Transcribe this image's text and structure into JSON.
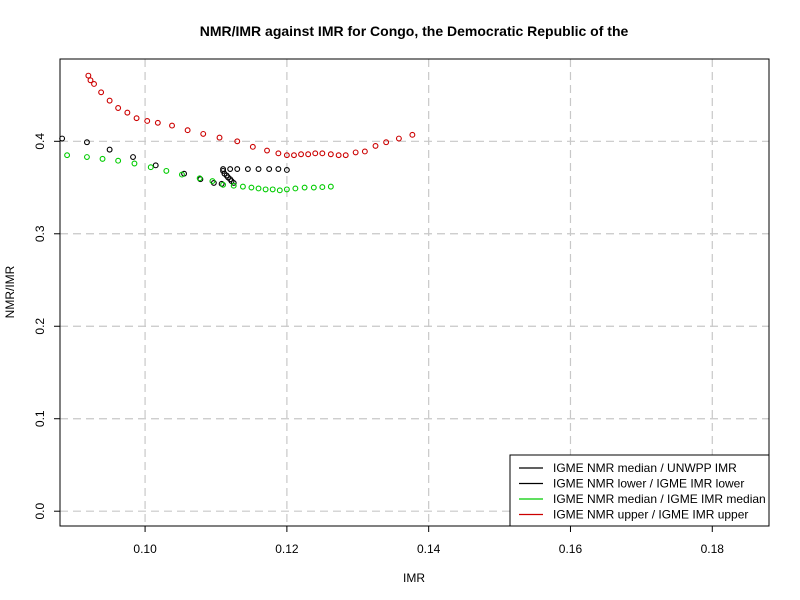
{
  "chart_data": {
    "type": "scatter",
    "title": "NMR/IMR against IMR for Congo, the Democratic Republic of the",
    "xlabel": "IMR",
    "ylabel": "NMR/IMR",
    "xlim": [
      0.088,
      0.188
    ],
    "ylim": [
      -0.016,
      0.489
    ],
    "xticks": [
      0.1,
      0.12,
      0.14,
      0.16,
      0.18
    ],
    "xtick_labels": [
      "0.10",
      "0.12",
      "0.14",
      "0.16",
      "0.18"
    ],
    "yticks": [
      0.0,
      0.1,
      0.2,
      0.3,
      0.4
    ],
    "ytick_labels": [
      "0.0",
      "0.1",
      "0.2",
      "0.3",
      "0.4"
    ],
    "grid": true,
    "legend_position": "bottom-right",
    "series": [
      {
        "name": "IGME NMR median / UNWPP IMR",
        "color": "#000000",
        "points": [
          [
            0.111,
            0.37
          ],
          [
            0.112,
            0.37
          ],
          [
            0.113,
            0.37
          ],
          [
            0.1145,
            0.37
          ],
          [
            0.116,
            0.37
          ],
          [
            0.1175,
            0.37
          ],
          [
            0.1188,
            0.37
          ],
          [
            0.12,
            0.369
          ]
        ]
      },
      {
        "name": "IGME NMR lower / IGME IMR lower",
        "color": "#000000",
        "points": [
          [
            0.0883,
            0.403
          ],
          [
            0.0918,
            0.399
          ],
          [
            0.095,
            0.391
          ],
          [
            0.0983,
            0.383
          ],
          [
            0.1015,
            0.374
          ],
          [
            0.1055,
            0.365
          ],
          [
            0.1078,
            0.359
          ],
          [
            0.1097,
            0.355
          ],
          [
            0.1108,
            0.354
          ],
          [
            0.111,
            0.368
          ],
          [
            0.1112,
            0.365
          ],
          [
            0.1115,
            0.363
          ],
          [
            0.1117,
            0.361
          ],
          [
            0.112,
            0.359
          ],
          [
            0.1122,
            0.357
          ],
          [
            0.1125,
            0.355
          ]
        ]
      },
      {
        "name": "IGME NMR median / IGME IMR median",
        "color": "#00cc00",
        "points": [
          [
            0.089,
            0.385
          ],
          [
            0.0918,
            0.383
          ],
          [
            0.094,
            0.381
          ],
          [
            0.0962,
            0.379
          ],
          [
            0.0985,
            0.376
          ],
          [
            0.1008,
            0.372
          ],
          [
            0.103,
            0.368
          ],
          [
            0.1052,
            0.364
          ],
          [
            0.1077,
            0.36
          ],
          [
            0.1095,
            0.357
          ],
          [
            0.111,
            0.353
          ],
          [
            0.1125,
            0.352
          ],
          [
            0.1138,
            0.351
          ],
          [
            0.115,
            0.35
          ],
          [
            0.116,
            0.349
          ],
          [
            0.117,
            0.348
          ],
          [
            0.118,
            0.348
          ],
          [
            0.119,
            0.347
          ],
          [
            0.12,
            0.348
          ],
          [
            0.1212,
            0.349
          ],
          [
            0.1225,
            0.35
          ],
          [
            0.1238,
            0.35
          ],
          [
            0.125,
            0.3505
          ],
          [
            0.1262,
            0.351
          ]
        ]
      },
      {
        "name": "IGME NMR upper / IGME IMR upper",
        "color": "#cc0000",
        "points": [
          [
            0.092,
            0.471
          ],
          [
            0.0923,
            0.466
          ],
          [
            0.0928,
            0.462
          ],
          [
            0.0938,
            0.453
          ],
          [
            0.095,
            0.444
          ],
          [
            0.0962,
            0.436
          ],
          [
            0.0975,
            0.431
          ],
          [
            0.0988,
            0.425
          ],
          [
            0.1003,
            0.422
          ],
          [
            0.1018,
            0.42
          ],
          [
            0.1038,
            0.417
          ],
          [
            0.106,
            0.412
          ],
          [
            0.1082,
            0.408
          ],
          [
            0.1105,
            0.404
          ],
          [
            0.113,
            0.4
          ],
          [
            0.1152,
            0.394
          ],
          [
            0.1172,
            0.39
          ],
          [
            0.1188,
            0.387
          ],
          [
            0.12,
            0.385
          ],
          [
            0.121,
            0.385
          ],
          [
            0.122,
            0.386
          ],
          [
            0.123,
            0.386
          ],
          [
            0.124,
            0.387
          ],
          [
            0.125,
            0.387
          ],
          [
            0.1262,
            0.386
          ],
          [
            0.1273,
            0.385
          ],
          [
            0.1283,
            0.385
          ],
          [
            0.1297,
            0.388
          ],
          [
            0.131,
            0.389
          ],
          [
            0.1325,
            0.395
          ],
          [
            0.134,
            0.399
          ],
          [
            0.1358,
            0.403
          ],
          [
            0.1377,
            0.407
          ]
        ]
      }
    ]
  }
}
